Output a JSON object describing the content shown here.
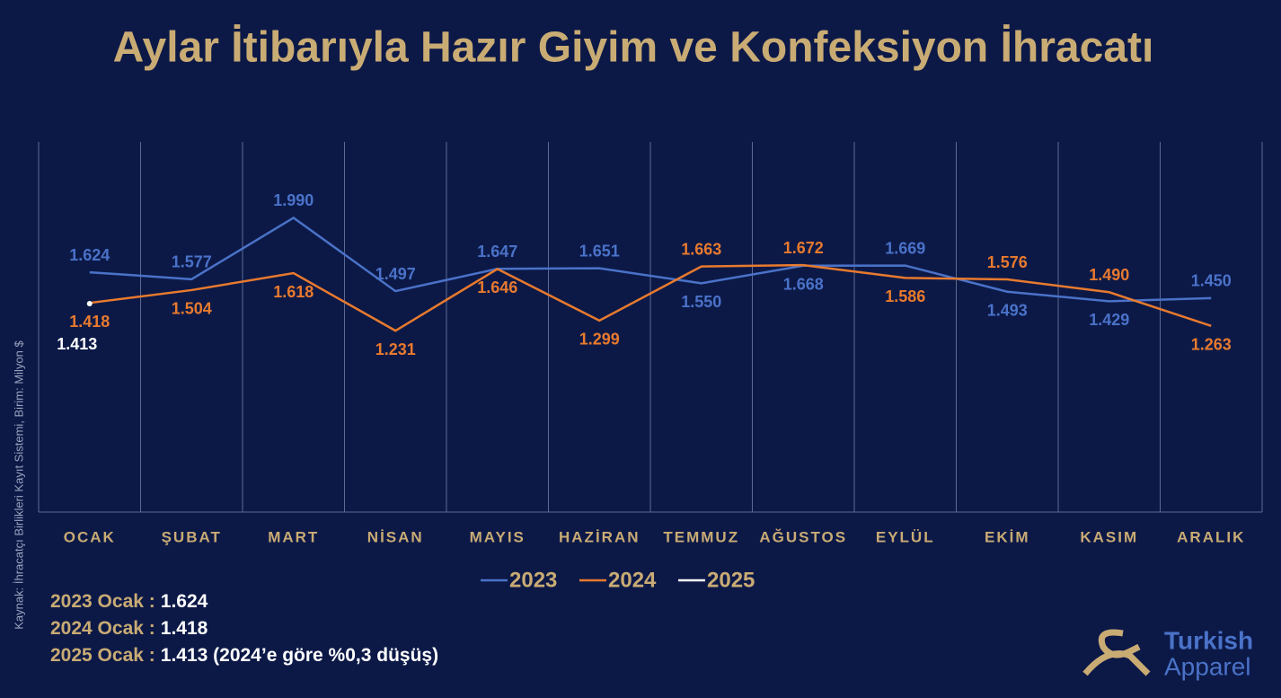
{
  "chart_data": {
    "type": "line",
    "title": "Aylar İtibarıyla Hazır Giyim ve Konfeksiyon İhracatı",
    "source": "Kaynak: İhracatçı Birlikleri Kayıt Sistemi, Birim: Milyon $",
    "categories": [
      "OCAK",
      "ŞUBAT",
      "MART",
      "NİSAN",
      "MAYIS",
      "HAZİRAN",
      "TEMMUZ",
      "AĞUSTOS",
      "EYLÜL",
      "EKİM",
      "KASIM",
      "ARALIK"
    ],
    "ylim": [
      0,
      2500
    ],
    "grid": true,
    "legend": "bottom",
    "series": [
      {
        "name": "2023",
        "color": "#4a72c8",
        "values": [
          1624,
          1577,
          1990,
          1497,
          1647,
          1651,
          1550,
          1668,
          1669,
          1493,
          1429,
          1450
        ],
        "value_labels": [
          "1.624",
          "1.577",
          "1.990",
          "1.497",
          "1.647",
          "1.651",
          "1.550",
          "1.668",
          "1.669",
          "1.493",
          "1.429",
          "1.450"
        ]
      },
      {
        "name": "2024",
        "color": "#e87a2e",
        "values": [
          1418,
          1504,
          1618,
          1231,
          1646,
          1299,
          1663,
          1672,
          1586,
          1576,
          1490,
          1263
        ],
        "value_labels": [
          "1.418",
          "1.504",
          "1.618",
          "1.231",
          "1.646",
          "1.299",
          "1.663",
          "1.672",
          "1.586",
          "1.576",
          "1.490",
          "1.263"
        ]
      },
      {
        "name": "2025",
        "color": "#ffffff",
        "values": [
          1413,
          null,
          null,
          null,
          null,
          null,
          null,
          null,
          null,
          null,
          null,
          null
        ],
        "value_labels": [
          "1.413",
          null,
          null,
          null,
          null,
          null,
          null,
          null,
          null,
          null,
          null,
          null
        ]
      }
    ],
    "notes": [
      {
        "label": "2023 Ocak :",
        "value": "1.624"
      },
      {
        "label": "2024 Ocak :",
        "value": "1.418"
      },
      {
        "label": "2025 Ocak :",
        "value": "1.413 (2024’e göre %0,3 düşüş)"
      }
    ],
    "logo": {
      "line1": "Turkish",
      "line2": "Apparel"
    }
  }
}
